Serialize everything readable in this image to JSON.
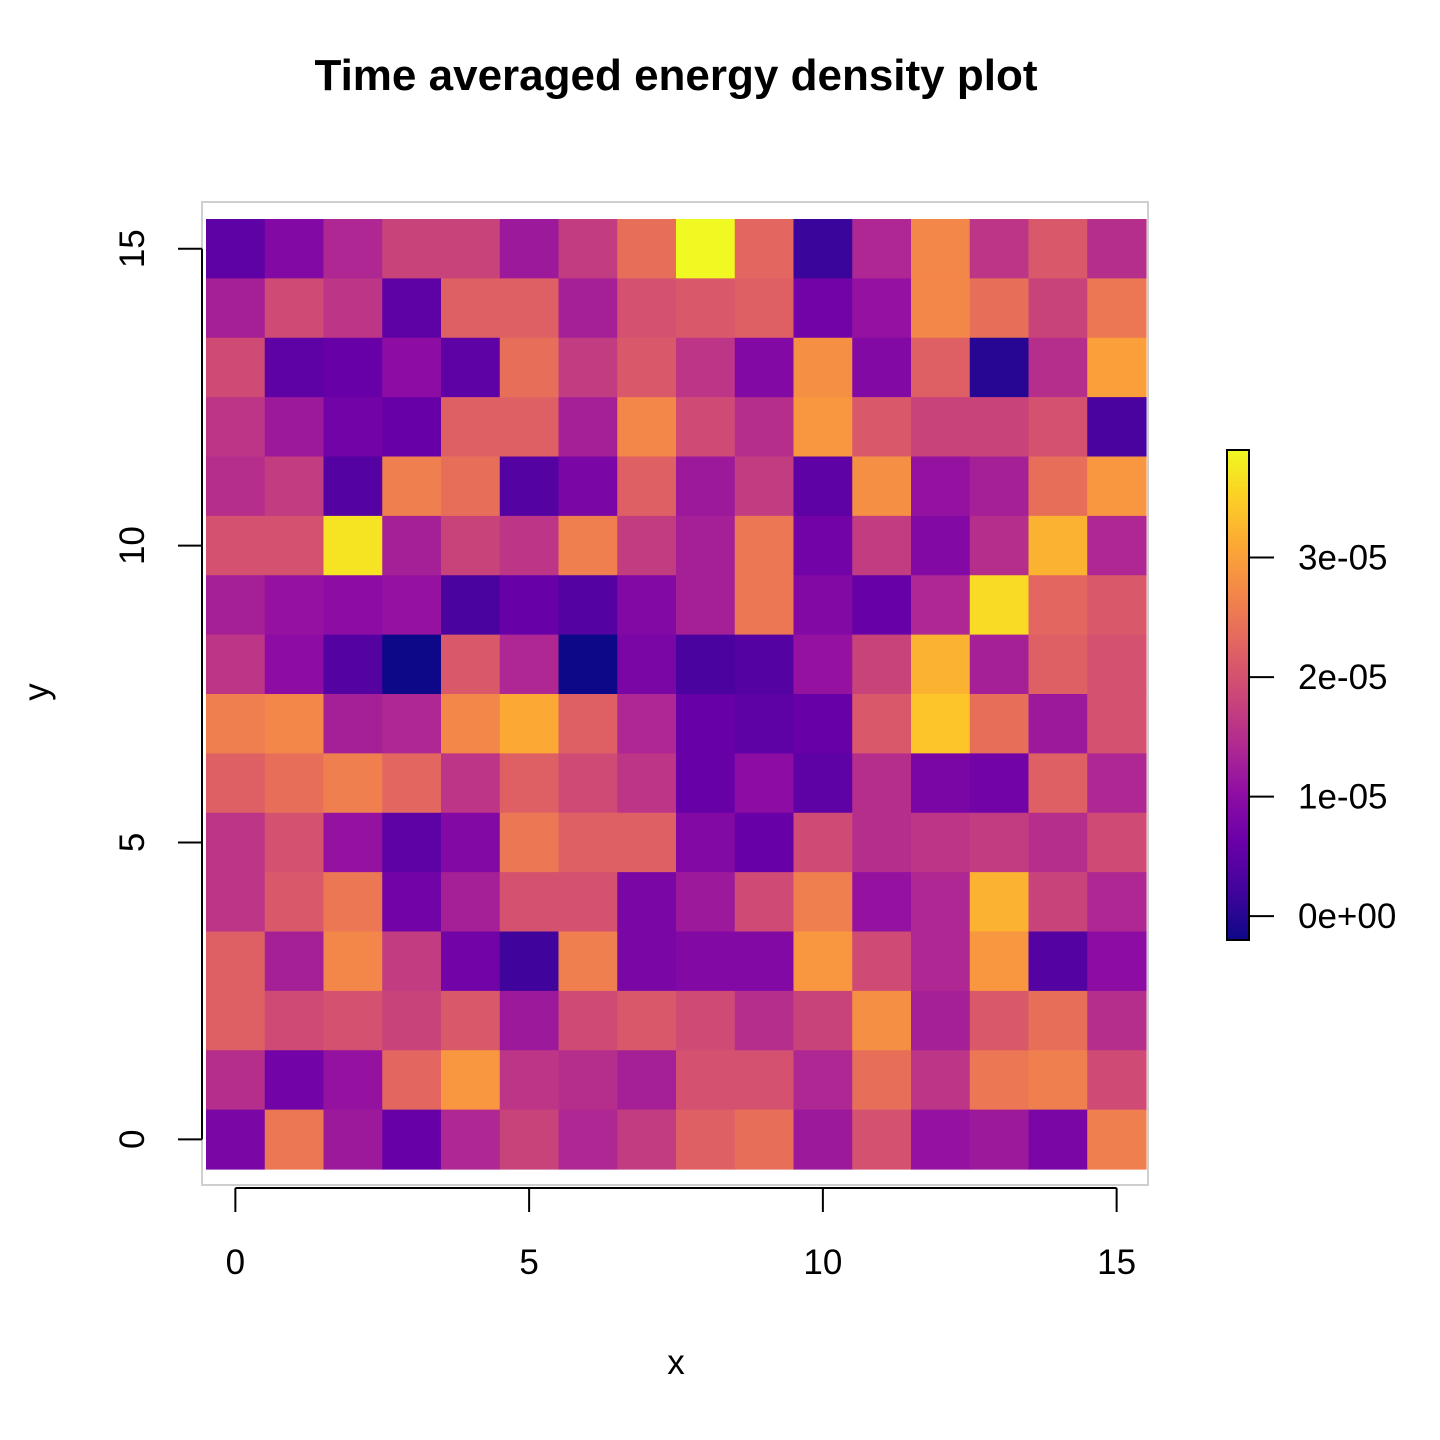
{
  "chart_data": {
    "type": "heatmap",
    "title": "Time averaged energy density plot",
    "xlabel": "x",
    "ylabel": "y",
    "x": [
      0,
      1,
      2,
      3,
      4,
      5,
      6,
      7,
      8,
      9,
      10,
      11,
      12,
      13,
      14,
      15
    ],
    "y": [
      0,
      1,
      2,
      3,
      4,
      5,
      6,
      7,
      8,
      9,
      10,
      11,
      12,
      13,
      14,
      15
    ],
    "xlim": [
      -0.5,
      15.5
    ],
    "ylim": [
      -0.5,
      15.5
    ],
    "x_ticks": [
      "0",
      "5",
      "10",
      "15"
    ],
    "y_ticks": [
      "0",
      "5",
      "10",
      "15"
    ],
    "colorscale": "plasma",
    "value_range": [
      -2e-06,
      3.9e-05
    ],
    "colorbar_ticks": [
      "0e+00",
      "1e-05",
      "2e-05",
      "3e-05"
    ],
    "colorbar_tick_values": [
      0,
      1e-05,
      2e-05,
      3e-05
    ],
    "grid": false,
    "values_rows_top_to_bottom_y15_to_y0": [
      [
        5e-06,
        9e-06,
        1.4e-05,
        1.8e-05,
        1.8e-05,
        1.2e-05,
        1.7e-05,
        2.4e-05,
        3.9e-05,
        2.3e-05,
        1.5e-06,
        1.4e-05,
        2.7e-05,
        1.6e-05,
        2.1e-05,
        1.5e-05
      ],
      [
        1.3e-05,
        1.9e-05,
        1.6e-05,
        5e-06,
        2.2e-05,
        2.2e-05,
        1.3e-05,
        2e-05,
        2.1e-05,
        2.2e-05,
        7e-06,
        1.1e-05,
        2.7e-05,
        2.4e-05,
        1.8e-05,
        2.5e-05
      ],
      [
        1.9e-05,
        5e-06,
        6e-06,
        1e-05,
        5e-06,
        2.4e-05,
        1.7e-05,
        2.1e-05,
        1.6e-05,
        9e-06,
        2.8e-05,
        9e-06,
        2.2e-05,
        0.0,
        1.5e-05,
        3e-05
      ],
      [
        1.6e-05,
        1.2e-05,
        7e-06,
        6e-06,
        2.2e-05,
        2.2e-05,
        1.3e-05,
        2.7e-05,
        1.9e-05,
        1.5e-05,
        2.9e-05,
        2.1e-05,
        1.8e-05,
        1.8e-05,
        2e-05,
        3e-06
      ],
      [
        1.5e-05,
        1.7e-05,
        4e-06,
        2.6e-05,
        2.4e-05,
        4e-06,
        8e-06,
        2.2e-05,
        1.2e-05,
        1.7e-05,
        5e-06,
        2.8e-05,
        1.1e-05,
        1.3e-05,
        2.4e-05,
        2.9e-05
      ],
      [
        2e-05,
        2e-05,
        3.7e-05,
        1.3e-05,
        1.8e-05,
        1.6e-05,
        2.6e-05,
        1.7e-05,
        1.3e-05,
        2.5e-05,
        7e-06,
        1.7e-05,
        9e-06,
        1.5e-05,
        3.2e-05,
        1.4e-05
      ],
      [
        1.3e-05,
        1.1e-05,
        1e-05,
        1.1e-05,
        3e-06,
        6e-06,
        4e-06,
        9e-06,
        1.3e-05,
        2.5e-05,
        9e-06,
        6e-06,
        1.4e-05,
        3.6e-05,
        2.3e-05,
        2.1e-05
      ],
      [
        1.6e-05,
        1e-05,
        4e-06,
        -2e-06,
        2.1e-05,
        1.4e-05,
        -2e-06,
        8e-06,
        3e-06,
        4e-06,
        1.1e-05,
        1.8e-05,
        3.2e-05,
        1.3e-05,
        2.2e-05,
        2e-05
      ],
      [
        2.6e-05,
        2.7e-05,
        1.3e-05,
        1.4e-05,
        2.7e-05,
        3.1e-05,
        2.2e-05,
        1.4e-05,
        6e-06,
        5e-06,
        6e-06,
        2.1e-05,
        3.4e-05,
        2.4e-05,
        1.2e-05,
        2e-05
      ],
      [
        2.2e-05,
        2.4e-05,
        2.6e-05,
        2.3e-05,
        1.6e-05,
        2.2e-05,
        1.9e-05,
        1.6e-05,
        6e-06,
        1e-05,
        5e-06,
        1.5e-05,
        8e-06,
        7e-06,
        2.2e-05,
        1.4e-05
      ],
      [
        1.6e-05,
        2e-05,
        1.1e-05,
        5e-06,
        9e-06,
        2.5e-05,
        2.2e-05,
        2.2e-05,
        9e-06,
        6e-06,
        1.9e-05,
        1.5e-05,
        1.6e-05,
        1.7e-05,
        1.5e-05,
        1.9e-05
      ],
      [
        1.6e-05,
        2.1e-05,
        2.5e-05,
        7e-06,
        1.3e-05,
        2e-05,
        2e-05,
        8e-06,
        1.2e-05,
        1.9e-05,
        2.6e-05,
        1.1e-05,
        1.4e-05,
        3.2e-05,
        1.8e-05,
        1.4e-05
      ],
      [
        2.2e-05,
        1.3e-05,
        2.7e-05,
        1.7e-05,
        7e-06,
        2e-06,
        2.6e-05,
        8e-06,
        9e-06,
        9e-06,
        2.9e-05,
        1.9e-05,
        1.4e-05,
        2.9e-05,
        4e-06,
        1e-05
      ],
      [
        2.2e-05,
        1.9e-05,
        2e-05,
        1.8e-05,
        2.1e-05,
        1.2e-05,
        1.9e-05,
        2.1e-05,
        1.9e-05,
        1.5e-05,
        1.8e-05,
        2.8e-05,
        1.3e-05,
        2.1e-05,
        2.4e-05,
        1.5e-05
      ],
      [
        1.5e-05,
        7e-06,
        1.1e-05,
        2.3e-05,
        2.9e-05,
        1.6e-05,
        1.5e-05,
        1.3e-05,
        2e-05,
        2e-05,
        1.4e-05,
        2.4e-05,
        1.6e-05,
        2.5e-05,
        2.6e-05,
        1.9e-05
      ],
      [
        8e-06,
        2.5e-05,
        1.2e-05,
        6e-06,
        1.4e-05,
        1.8e-05,
        1.4e-05,
        1.7e-05,
        2.2e-05,
        2.4e-05,
        1.2e-05,
        2e-05,
        1.1e-05,
        1.2e-05,
        8e-06,
        2.6e-05
      ]
    ]
  }
}
